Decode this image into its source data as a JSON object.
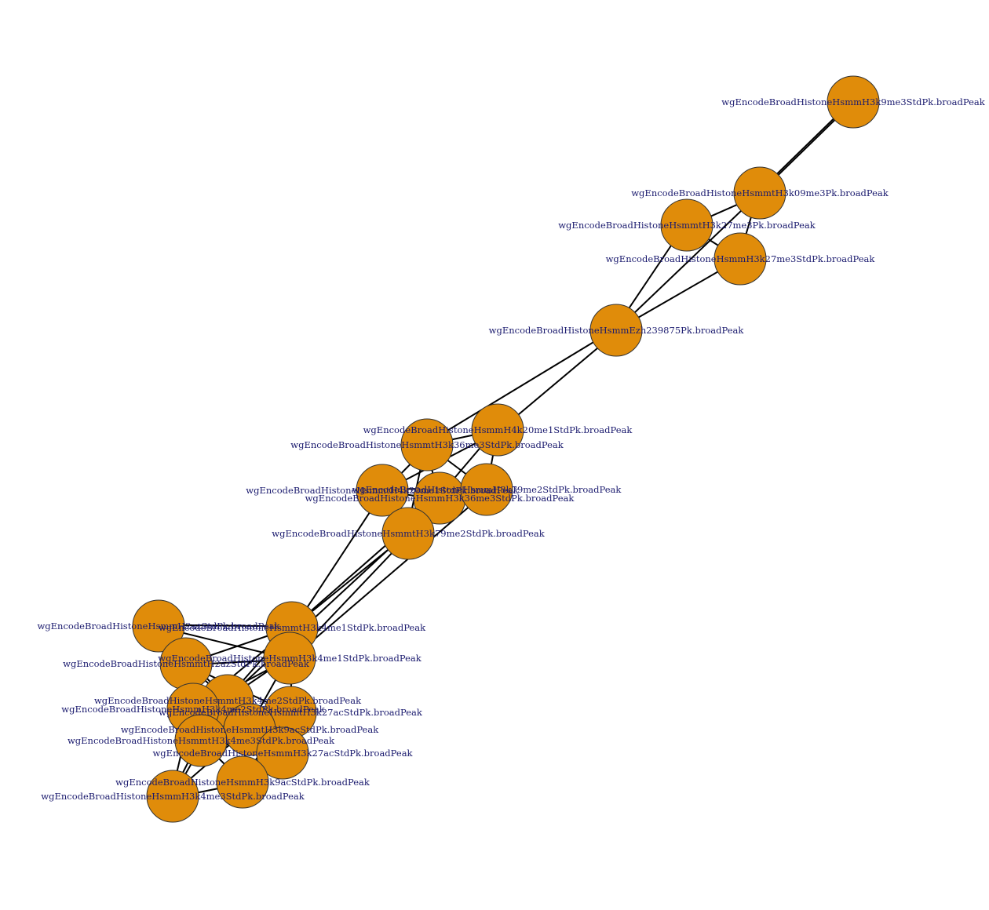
{
  "graph": {
    "node_color": "#e08c0a",
    "label_color": "#1a1a6e",
    "edge_color": "#000000",
    "nodes": [
      {
        "id": "n1",
        "label": "wgEncodeBroadHistoneHsmmH3k9me3StdPk.broadPeak"
      },
      {
        "id": "n2",
        "label": "wgEncodeBroadHistoneHsmmtH3k09me3Pk.broadPeak"
      },
      {
        "id": "n3",
        "label": "wgEncodeBroadHistoneHsmmtH3k27me3Pk.broadPeak"
      },
      {
        "id": "n4",
        "label": "wgEncodeBroadHistoneHsmmH3k27me3StdPk.broadPeak"
      },
      {
        "id": "n5",
        "label": "wgEncodeBroadHistoneHsmmEzh239875Pk.broadPeak"
      },
      {
        "id": "n6",
        "label": "wgEncodeBroadHistoneHsmmH4k20me1StdPk.broadPeak"
      },
      {
        "id": "n7",
        "label": "wgEncodeBroadHistoneHsmmtH3k36me3StdPk.broadPeak"
      },
      {
        "id": "n8",
        "label": "wgEncodeBroadHistoneHsmmtH4k20me1StdPk.broadPeak"
      },
      {
        "id": "n9",
        "label": "wgEncodeBroadHistoneHsmmH3k36me3StdPk.broadPeak"
      },
      {
        "id": "n10",
        "label": "wgEncodeBroadHistoneHsmmH3k79me2StdPk.broadPeak"
      },
      {
        "id": "n11",
        "label": "wgEncodeBroadHistoneHsmmtH3k79me2StdPk.broadPeak"
      },
      {
        "id": "n12",
        "label": "wgEncodeBroadHistoneHsmmH2azStdPk.broadPeak"
      },
      {
        "id": "n13",
        "label": "wgEncodeBroadHistoneHsmmtH3k4me1StdPk.broadPeak"
      },
      {
        "id": "n14",
        "label": "wgEncodeBroadHistoneHsmmtH2azStdPk.broadPeak"
      },
      {
        "id": "n15",
        "label": "wgEncodeBroadHistoneHsmmH3k4me1StdPk.broadPeak"
      },
      {
        "id": "n16",
        "label": "wgEncodeBroadHistoneHsmmtH3k4me2StdPk.broadPeak"
      },
      {
        "id": "n17",
        "label": "wgEncodeBroadHistoneHsmmH3k4me2StdPk.broadPeak"
      },
      {
        "id": "n18",
        "label": "wgEncodeBroadHistoneHsmmtH3k27acStdPk.broadPeak"
      },
      {
        "id": "n19",
        "label": "wgEncodeBroadHistoneHsmmtH3k9acStdPk.broadPeak"
      },
      {
        "id": "n20",
        "label": "wgEncodeBroadHistoneHsmmtH3k4me3StdPk.broadPeak"
      },
      {
        "id": "n21",
        "label": "wgEncodeBroadHistoneHsmmH3k27acStdPk.broadPeak"
      },
      {
        "id": "n22",
        "label": "wgEncodeBroadHistoneHsmmH3k9acStdPk.broadPeak"
      },
      {
        "id": "n23",
        "label": "wgEncodeBroadHistoneHsmmH3k4me3StdPk.broadPeak"
      }
    ],
    "edges": [
      [
        "n1",
        "n2"
      ],
      [
        "n1",
        "n2"
      ],
      [
        "n2",
        "n3"
      ],
      [
        "n2",
        "n4"
      ],
      [
        "n2",
        "n5"
      ],
      [
        "n3",
        "n4"
      ],
      [
        "n3",
        "n5"
      ],
      [
        "n4",
        "n5"
      ],
      [
        "n5",
        "n6"
      ],
      [
        "n5",
        "n7"
      ],
      [
        "n6",
        "n7"
      ],
      [
        "n6",
        "n8"
      ],
      [
        "n6",
        "n9"
      ],
      [
        "n6",
        "n10"
      ],
      [
        "n7",
        "n8"
      ],
      [
        "n7",
        "n9"
      ],
      [
        "n7",
        "n10"
      ],
      [
        "n8",
        "n9"
      ],
      [
        "n8",
        "n10"
      ],
      [
        "n8",
        "n11"
      ],
      [
        "n8",
        "n13"
      ],
      [
        "n9",
        "n10"
      ],
      [
        "n9",
        "n11"
      ],
      [
        "n10",
        "n11"
      ],
      [
        "n7",
        "n11"
      ],
      [
        "n11",
        "n13"
      ],
      [
        "n11",
        "n15"
      ],
      [
        "n11",
        "n16"
      ],
      [
        "n9",
        "n13"
      ],
      [
        "n10",
        "n15"
      ],
      [
        "n12",
        "n13"
      ],
      [
        "n12",
        "n14"
      ],
      [
        "n12",
        "n15"
      ],
      [
        "n12",
        "n16"
      ],
      [
        "n13",
        "n14"
      ],
      [
        "n13",
        "n15"
      ],
      [
        "n13",
        "n16"
      ],
      [
        "n13",
        "n17"
      ],
      [
        "n14",
        "n15"
      ],
      [
        "n14",
        "n16"
      ],
      [
        "n14",
        "n17"
      ],
      [
        "n14",
        "n18"
      ],
      [
        "n15",
        "n16"
      ],
      [
        "n15",
        "n17"
      ],
      [
        "n15",
        "n18"
      ],
      [
        "n15",
        "n19"
      ],
      [
        "n16",
        "n17"
      ],
      [
        "n16",
        "n18"
      ],
      [
        "n16",
        "n19"
      ],
      [
        "n16",
        "n20"
      ],
      [
        "n16",
        "n21"
      ],
      [
        "n17",
        "n18"
      ],
      [
        "n17",
        "n19"
      ],
      [
        "n17",
        "n20"
      ],
      [
        "n17",
        "n23"
      ],
      [
        "n18",
        "n19"
      ],
      [
        "n18",
        "n21"
      ],
      [
        "n18",
        "n22"
      ],
      [
        "n19",
        "n20"
      ],
      [
        "n19",
        "n21"
      ],
      [
        "n19",
        "n22"
      ],
      [
        "n20",
        "n21"
      ],
      [
        "n20",
        "n22"
      ],
      [
        "n20",
        "n23"
      ],
      [
        "n21",
        "n22"
      ],
      [
        "n22",
        "n23"
      ],
      [
        "n23",
        "n19"
      ],
      [
        "n23",
        "n16"
      ]
    ]
  }
}
